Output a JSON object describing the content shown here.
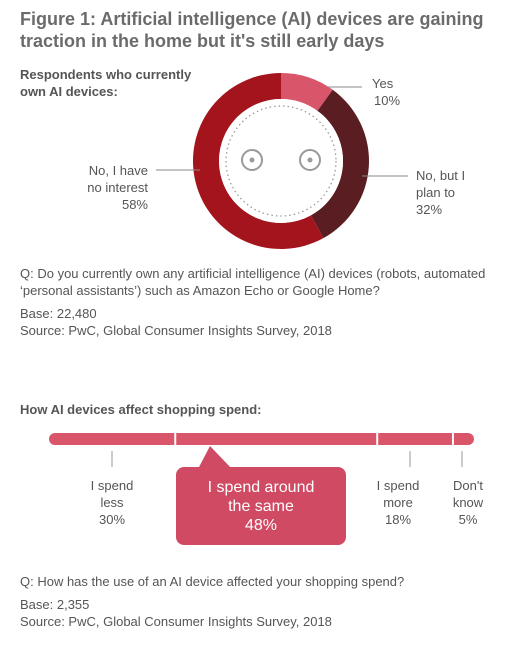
{
  "title": "Figure 1: Artificial intelligence (AI) devices are gaining traction in the home but it's still early days",
  "chart_data": [
    {
      "type": "pie",
      "title": "Respondents who currently own AI devices:",
      "slices": [
        {
          "label": "Yes",
          "value": 10,
          "display": "10%",
          "color": "#d9556a"
        },
        {
          "label": "No, but I plan to",
          "value": 32,
          "display": "32%",
          "color": "#5a1e22"
        },
        {
          "label": "No, I have no interest",
          "value": 58,
          "display": "58%",
          "color": "#a3141d"
        }
      ],
      "question": "Q: Do you currently own any artificial intelligence (AI) devices (robots, automated ‘personal assistants’) such as Amazon Echo or Google Home?",
      "base": "Base: 22,480",
      "source": "Source: PwC, Global Consumer Insights Survey, 2018"
    },
    {
      "type": "bar",
      "title": "How AI devices affect shopping spend:",
      "segments": [
        {
          "label": "I spend less",
          "value": 30,
          "display": "30%"
        },
        {
          "label": "I spend around the same",
          "value": 48,
          "display": "48%"
        },
        {
          "label": "I spend more",
          "value": 18,
          "display": "18%"
        },
        {
          "label": "Don't know",
          "value": 5,
          "display": "5%"
        }
      ],
      "bar_color": "#d9556a",
      "question": "Q: How has the use of an AI device affected your shopping spend?",
      "base": "Base: 2,355",
      "source": "Source: PwC, Global Consumer Insights Survey, 2018"
    }
  ],
  "labels": {
    "yes_name": "Yes",
    "plan_name_1": "No, but I",
    "plan_name_2": "plan to",
    "nointerest_name_1": "No, I have",
    "nointerest_name_2": "no interest",
    "less_1": "I spend",
    "less_2": "less",
    "same_1": "I spend around",
    "same_2": "the same",
    "more_1": "I spend",
    "more_2": "more",
    "dk_1": "Don't",
    "dk_2": "know"
  }
}
